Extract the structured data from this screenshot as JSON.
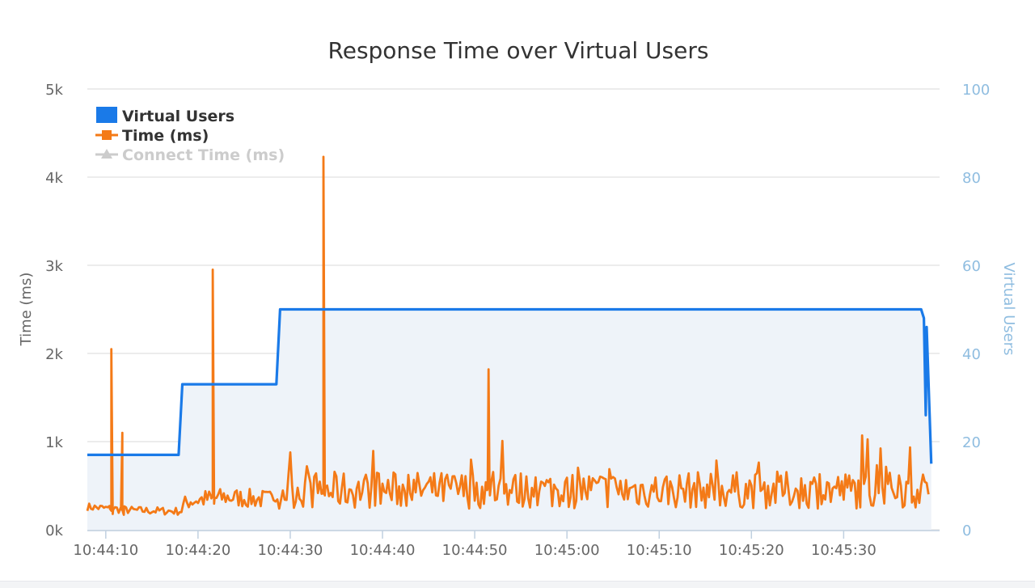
{
  "chart_data": {
    "type": "line",
    "title": "Response Time over Virtual Users",
    "left_axis": {
      "label": "Time (ms)",
      "range": [
        0,
        5000
      ],
      "ticks": [
        0,
        1000,
        2000,
        3000,
        4000,
        5000
      ],
      "tick_labels": [
        "0k",
        "1k",
        "2k",
        "3k",
        "4k",
        "5k"
      ]
    },
    "right_axis": {
      "label": "Virtual Users",
      "range": [
        0,
        100
      ],
      "ticks": [
        0,
        20,
        40,
        60,
        80,
        100
      ],
      "tick_labels": [
        "0",
        "20",
        "40",
        "60",
        "80",
        "100"
      ]
    },
    "x_axis": {
      "range_seconds": [
        0,
        92.4
      ],
      "ticks": [
        2,
        12,
        22,
        32,
        42,
        52,
        62,
        72,
        82
      ],
      "tick_labels": [
        "10:44:10",
        "10:44:20",
        "10:44:30",
        "10:44:40",
        "10:44:50",
        "10:45:00",
        "10:45:10",
        "10:45:20",
        "10:45:30"
      ]
    },
    "grid": true,
    "legend": {
      "placement": "top-left",
      "items": [
        {
          "label": "Virtual Users",
          "color": "#1a7ae8",
          "marker": "square",
          "enabled": true
        },
        {
          "label": "Time (ms)",
          "color": "#f47a17",
          "marker": "square",
          "enabled": true
        },
        {
          "label": "Connect Time (ms)",
          "color": "#cccccc",
          "marker": "triangle",
          "enabled": false
        }
      ]
    },
    "series": [
      {
        "name": "Virtual Users",
        "axis": "right",
        "type": "area",
        "color": "#1a7ae8",
        "fill": "#eef3f9",
        "points": [
          [
            0,
            17
          ],
          [
            9.9,
            17
          ],
          [
            10.3,
            33
          ],
          [
            20.5,
            33
          ],
          [
            20.9,
            50
          ],
          [
            90.4,
            50
          ],
          [
            90.7,
            48
          ],
          [
            90.9,
            26
          ],
          [
            91.0,
            46
          ],
          [
            91.3,
            27
          ],
          [
            91.5,
            15
          ]
        ]
      },
      {
        "name": "Time (ms)",
        "axis": "left",
        "color": "#f47a17",
        "spikes": [
          [
            2.6,
            2050
          ],
          [
            3.8,
            1100
          ],
          [
            13.6,
            2950
          ],
          [
            25.6,
            4230
          ],
          [
            43.5,
            1820
          ]
        ],
        "baseline": [
          [
            0,
            260
          ],
          [
            5,
            220
          ],
          [
            10,
            210
          ],
          [
            11,
            330
          ],
          [
            15,
            370
          ],
          [
            20,
            340
          ],
          [
            20.5,
            450
          ],
          [
            91.3,
            450
          ]
        ]
      },
      {
        "name": "Connect Time (ms)",
        "axis": "left",
        "color": "#cccccc",
        "visible": false,
        "points": []
      }
    ]
  },
  "colors": {
    "grid": "#e6e6e6",
    "axis_text": "#666666",
    "right_axis_text": "#8fbde0",
    "title_text": "#333333"
  }
}
